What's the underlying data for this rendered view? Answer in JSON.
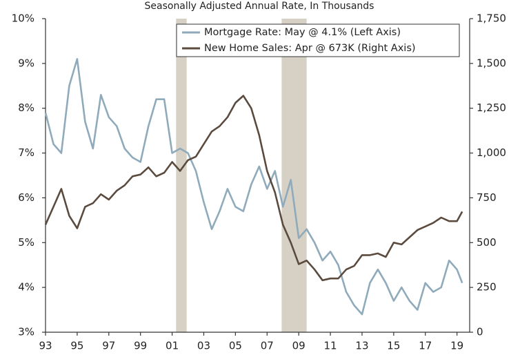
{
  "chart_data": {
    "type": "line",
    "subtitle": "Seasonally Adjusted Annual Rate, In Thousands",
    "x": [
      1993,
      1993.5,
      1994,
      1994.5,
      1995,
      1995.5,
      1996,
      1996.5,
      1997,
      1997.5,
      1998,
      1998.5,
      1999,
      1999.5,
      2000,
      2000.5,
      2001,
      2001.5,
      2002,
      2002.5,
      2003,
      2003.5,
      2004,
      2004.5,
      2005,
      2005.5,
      2006,
      2006.5,
      2007,
      2007.5,
      2008,
      2008.5,
      2009,
      2009.5,
      2010,
      2010.5,
      2011,
      2011.5,
      2012,
      2012.5,
      2013,
      2013.5,
      2014,
      2014.5,
      2015,
      2015.5,
      2016,
      2016.5,
      2017,
      2017.5,
      2018,
      2018.5,
      2019,
      2019.33
    ],
    "series": [
      {
        "name": "Mortgage Rate: May @ 4.1% (Left Axis)",
        "color": "#8eaabb",
        "axis": "y",
        "values": [
          7.9,
          7.2,
          7.0,
          8.5,
          9.1,
          7.7,
          7.1,
          8.3,
          7.8,
          7.6,
          7.1,
          6.9,
          6.8,
          7.6,
          8.2,
          8.2,
          7.0,
          7.1,
          7.0,
          6.6,
          5.9,
          5.3,
          5.7,
          6.2,
          5.8,
          5.7,
          6.3,
          6.7,
          6.2,
          6.6,
          5.8,
          6.4,
          5.1,
          5.3,
          5.0,
          4.6,
          4.8,
          4.5,
          3.9,
          3.6,
          3.4,
          4.1,
          4.4,
          4.1,
          3.7,
          4.0,
          3.7,
          3.5,
          4.1,
          3.9,
          4.0,
          4.6,
          4.4,
          4.1
        ]
      },
      {
        "name": "New Home Sales: Apr @ 673K (Right Axis)",
        "color": "#5b4a3e",
        "axis": "y2",
        "values": [
          600,
          700,
          800,
          650,
          580,
          700,
          720,
          770,
          740,
          790,
          820,
          870,
          880,
          920,
          870,
          890,
          950,
          900,
          960,
          980,
          1050,
          1120,
          1150,
          1200,
          1280,
          1320,
          1250,
          1100,
          900,
          780,
          600,
          500,
          380,
          400,
          350,
          290,
          300,
          300,
          350,
          370,
          430,
          430,
          440,
          420,
          500,
          490,
          530,
          570,
          590,
          610,
          640,
          620,
          620,
          673
        ]
      }
    ],
    "shaded_periods": [
      [
        2001.25,
        2001.92
      ],
      [
        2007.92,
        2009.5
      ]
    ],
    "shade_color": "#d6d1c4",
    "xlim": [
      1993,
      2019.8
    ],
    "xticks": [
      {
        "value": 1993,
        "label": "93"
      },
      {
        "value": 1995,
        "label": "95"
      },
      {
        "value": 1997,
        "label": "97"
      },
      {
        "value": 1999,
        "label": "99"
      },
      {
        "value": 2001,
        "label": "01"
      },
      {
        "value": 2003,
        "label": "03"
      },
      {
        "value": 2005,
        "label": "05"
      },
      {
        "value": 2007,
        "label": "07"
      },
      {
        "value": 2009,
        "label": "09"
      },
      {
        "value": 2011,
        "label": "11"
      },
      {
        "value": 2013,
        "label": "13"
      },
      {
        "value": 2015,
        "label": "15"
      },
      {
        "value": 2017,
        "label": "17"
      },
      {
        "value": 2019,
        "label": "19"
      }
    ],
    "ylim": [
      3,
      10
    ],
    "yticks": [
      {
        "value": 3,
        "label": "3%"
      },
      {
        "value": 4,
        "label": "4%"
      },
      {
        "value": 5,
        "label": "5%"
      },
      {
        "value": 6,
        "label": "6%"
      },
      {
        "value": 7,
        "label": "7%"
      },
      {
        "value": 8,
        "label": "8%"
      },
      {
        "value": 9,
        "label": "9%"
      },
      {
        "value": 10,
        "label": "10%"
      }
    ],
    "y2lim": [
      0,
      1750
    ],
    "y2ticks": [
      0,
      250,
      500,
      750,
      {
        "value": 1000,
        "label": "1,000"
      },
      {
        "value": 1250,
        "label": "1,250"
      },
      {
        "value": 1500,
        "label": "1,500"
      },
      {
        "value": 1750,
        "label": "1,750"
      }
    ],
    "legend": "top-right"
  }
}
